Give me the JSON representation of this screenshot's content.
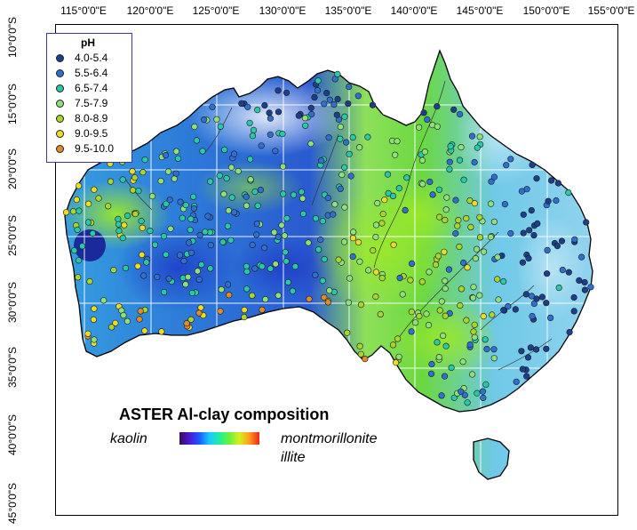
{
  "axes": {
    "longitude_labels": [
      "115°0'0\"E",
      "120°0'0\"E",
      "125°0'0\"E",
      "130°0'0\"E",
      "135°0'0\"E",
      "140°0'0\"E",
      "145°0'0\"E",
      "150°0'0\"E",
      "155°0'0\"E"
    ],
    "latitude_labels": [
      "10°0'0\"S",
      "15°0'0\"S",
      "20°0'0\"S",
      "25°0'0\"S",
      "30°0'0\"S",
      "35°0'0\"S",
      "40°0'0\"S",
      "45°0'0\"S"
    ]
  },
  "legend": {
    "title": "pH",
    "items": [
      {
        "label": "4.0-5.4",
        "color": "#1c3f8c"
      },
      {
        "label": "5.5-6.4",
        "color": "#2f6fd0"
      },
      {
        "label": "6.5-7.4",
        "color": "#27c9a8"
      },
      {
        "label": "7.5-7.9",
        "color": "#8fe07a"
      },
      {
        "label": "8.0-8.9",
        "color": "#a8d62c"
      },
      {
        "label": "9.0-9.5",
        "color": "#ecdc28"
      },
      {
        "label": "9.5-10.0",
        "color": "#e08a2a"
      }
    ]
  },
  "colorbar": {
    "title": "ASTER Al-clay composition",
    "left_label": "kaolin",
    "right_label_line1": "montmorillonite",
    "right_label_line2": "illite"
  },
  "colors": {
    "coastline": "#000000",
    "rivers": "#333333",
    "grid": "#ffffff"
  }
}
